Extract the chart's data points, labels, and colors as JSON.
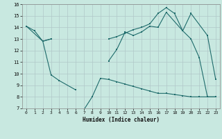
{
  "xlabel": "Humidex (Indice chaleur)",
  "xlim": [
    -0.5,
    23.5
  ],
  "ylim": [
    7,
    16
  ],
  "yticks": [
    7,
    8,
    9,
    10,
    11,
    12,
    13,
    14,
    15,
    16
  ],
  "xticks": [
    0,
    1,
    2,
    3,
    4,
    5,
    6,
    7,
    8,
    9,
    10,
    11,
    12,
    13,
    14,
    15,
    16,
    17,
    18,
    19,
    20,
    21,
    22,
    23
  ],
  "background_color": "#c8e8e0",
  "grid_color": "#b0c8c8",
  "line_color": "#1e6b6b",
  "line1_x": [
    0,
    1,
    2,
    3,
    10,
    11,
    12,
    13,
    14,
    15,
    16,
    17,
    19,
    20,
    21,
    22,
    23
  ],
  "line1_y": [
    14.1,
    13.7,
    12.8,
    13.0,
    11.1,
    12.1,
    13.6,
    13.3,
    13.6,
    14.1,
    14.0,
    15.3,
    13.7,
    13.0,
    11.4,
    8.0,
    8.0
  ],
  "line2_x": [
    0,
    2,
    3,
    10,
    11,
    12,
    13,
    14,
    15,
    16,
    17,
    18,
    19,
    20,
    22,
    23
  ],
  "line2_y": [
    14.1,
    12.8,
    13.0,
    13.0,
    13.2,
    13.5,
    13.8,
    14.0,
    14.3,
    15.2,
    15.7,
    15.2,
    13.7,
    15.2,
    13.3,
    9.5
  ],
  "line3_x": [
    2,
    3,
    4,
    6,
    7,
    8,
    9,
    10,
    11,
    12,
    13,
    14,
    15,
    16,
    17,
    18,
    19,
    20,
    21,
    22,
    23
  ],
  "line3_y": [
    12.8,
    9.9,
    9.4,
    8.6,
    6.9,
    8.0,
    9.6,
    9.5,
    9.3,
    9.1,
    8.9,
    8.7,
    8.5,
    8.3,
    8.3,
    8.2,
    8.1,
    8.0,
    8.0,
    8.0,
    8.0
  ]
}
